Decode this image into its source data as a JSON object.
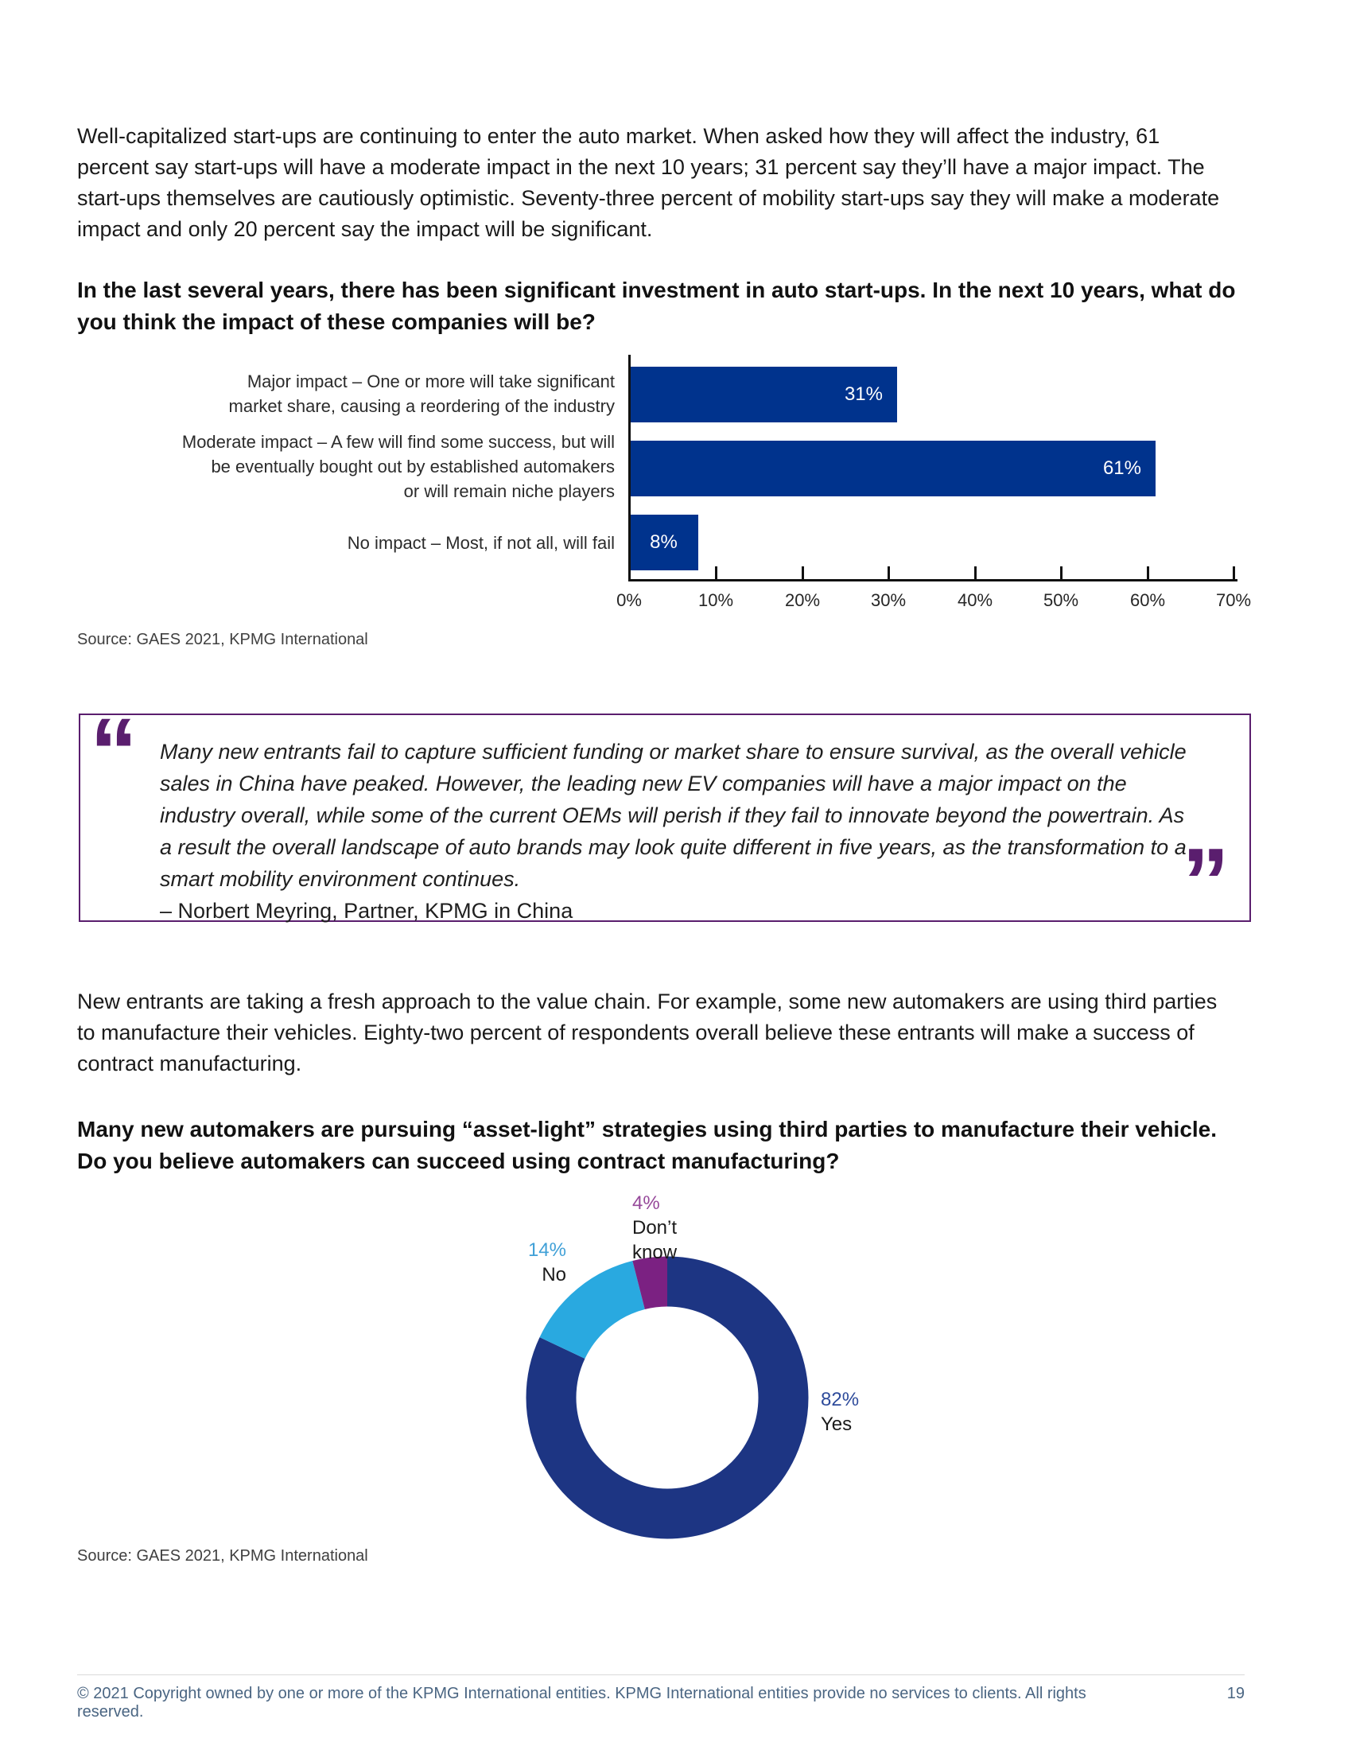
{
  "page": {
    "intro_paragraph": "Well-capitalized start-ups are continuing to enter the auto market. When asked how they will affect the industry, 61 percent say start-ups will have a moderate impact in the next 10 years; 31 percent say they’ll have a major impact. The start-ups themselves are cautiously optimistic. Seventy-three percent of mobility start-ups say they will make a moderate impact and only 20 percent say the impact will be significant.",
    "question1": "In the last several years, there has been significant investment in auto start-ups. In the next 10 years, what do you think the impact of these companies will be?",
    "source1": "Source: GAES 2021, KPMG International",
    "quote": {
      "open_mark": "“",
      "close_mark": "”",
      "text": "Many new entrants fail to capture sufficient funding or market share to ensure survival, as the overall vehicle sales in China have peaked. However, the leading new EV companies will have a major impact on the industry overall, while some of the current OEMs will perish if they fail to innovate beyond the powertrain. As a result the overall landscape of auto brands may look quite different in five years, as the transformation to a smart mobility environment continues.",
      "attribution": "– Norbert Meyring, Partner, KPMG in China"
    },
    "paragraph2": "New entrants are taking a fresh approach to the value chain. For example, some new automakers are using third parties to manufacture their vehicles. Eighty-two percent of respondents overall believe these entrants will make a success of contract manufacturing.",
    "question2": "Many new automakers are pursuing “asset-light” strategies using third parties to manufacture their vehicle. Do you believe automakers can succeed using contract manufacturing?",
    "source2": "Source: GAES 2021, KPMG International",
    "footer": {
      "copyright": "© 2021 Copyright owned by one or more of the KPMG International entities. KPMG International entities provide no services to clients. All rights reserved.",
      "page_number": "19"
    }
  },
  "chart_data": [
    {
      "type": "bar",
      "orientation": "horizontal",
      "title": "In the last several years, there has been significant investment in auto start-ups. In the next 10 years, what do you think the impact of these companies will be?",
      "categories": [
        [
          "Major impact – One or more will take significant",
          "market share, causing a reordering of the industry"
        ],
        [
          "Moderate impact – A few will find some success, but will",
          "be eventually bought out by established automakers",
          "or will remain niche players"
        ],
        [
          "No impact – Most, if not all, will fail"
        ]
      ],
      "values": [
        31,
        61,
        8
      ],
      "value_labels": [
        "31%",
        "61%",
        "8%"
      ],
      "xlim": [
        0,
        70
      ],
      "x_ticks": [
        "0%",
        "10%",
        "20%",
        "30%",
        "40%",
        "50%",
        "60%",
        "70%"
      ],
      "xlabel": "",
      "ylabel": "",
      "grid": false,
      "legend": "none",
      "bar_color": "#00338D",
      "source": "Source: GAES 2021, KPMG International"
    },
    {
      "type": "pie",
      "donut": true,
      "title": "Many new automakers are pursuing “asset-light” strategies using third parties to manufacture their vehicle. Do you believe automakers can succeed using contract manufacturing?",
      "categories": [
        "Yes",
        "No",
        "Don’t know"
      ],
      "values": [
        82,
        14,
        4
      ],
      "value_labels": [
        "82%",
        "14%",
        "4%"
      ],
      "colors": [
        "#1D3583",
        "#29A9E0",
        "#7B2182"
      ],
      "label_colors": [
        "#2E4B9B",
        "#40A0D7",
        "#96499A"
      ],
      "start_angle_deg": 0,
      "direction": "clockwise",
      "legend": "labels-outside",
      "source": "Source: GAES 2021, KPMG International"
    }
  ]
}
